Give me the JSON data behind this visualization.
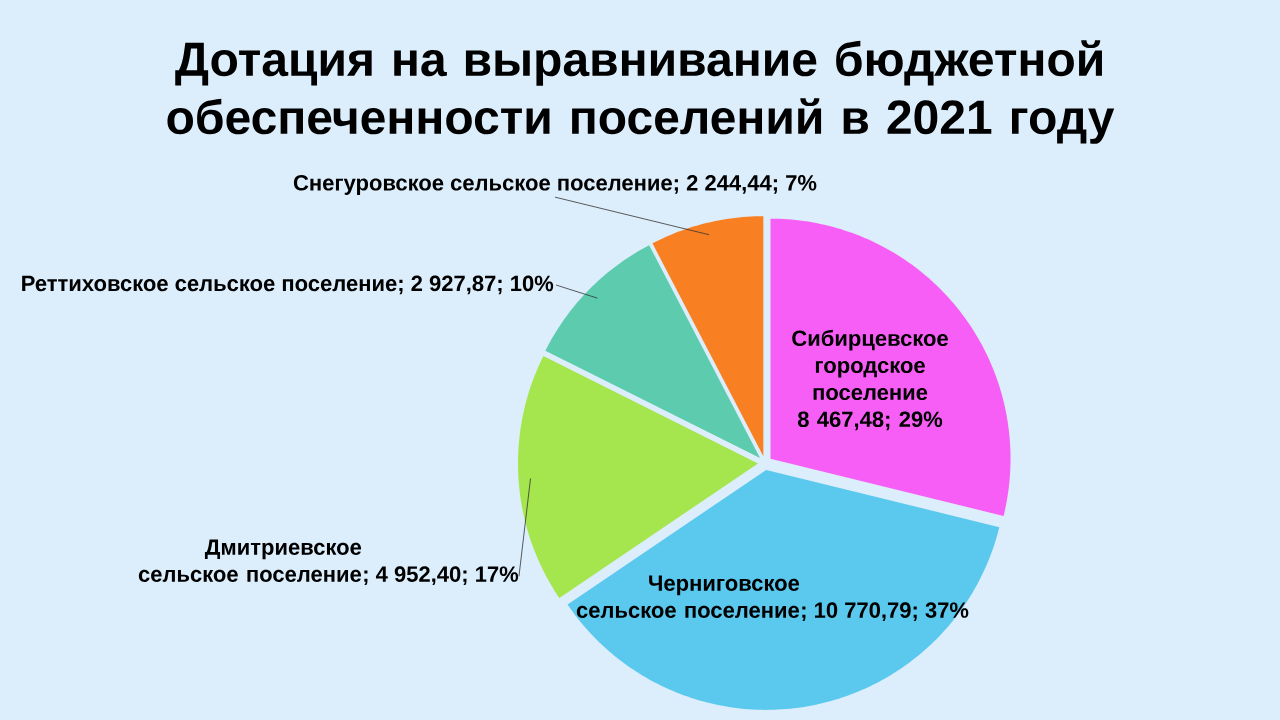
{
  "chart_data": {
    "type": "pie",
    "title": "Дотация на выравнивание бюджетной обеспеченности поселений в 2021 году",
    "categories": [
      "Сибирцевское городское поселение",
      "Черниговское сельское поселение",
      "Дмитриевское сельское поселение",
      "Реттиховское сельское поселение",
      "Снегуровское сельское поселение"
    ],
    "values": [
      8467.48,
      10770.79,
      4952.4,
      2927.87,
      2244.44
    ],
    "colors": [
      "#f75ef5",
      "#5bc8ee",
      "#a5e64f",
      "#5ccbae",
      "#f98022"
    ],
    "value_labels": [
      "8 467,48; 29%",
      "; 10 770,79; 37%",
      "; 4 952,40; 17%",
      "; 2 927,87; 10%",
      "; 2 244,44; 7%"
    ]
  }
}
